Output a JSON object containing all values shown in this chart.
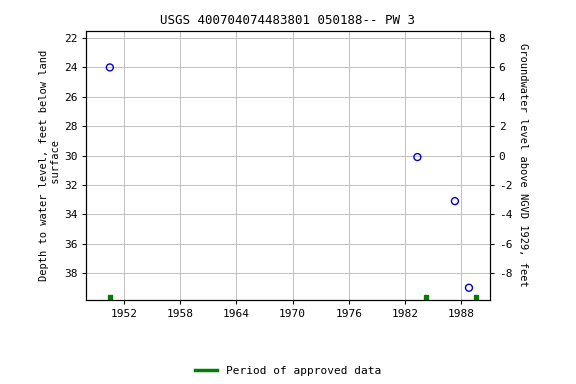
{
  "title": "USGS 400704074483801 050188-- PW 3",
  "ylabel_left": "Depth to water level, feet below land\n surface",
  "ylabel_right": "Groundwater level above NGVD 1929, feet",
  "ylim_left": [
    39.8,
    21.5
  ],
  "yticks_left": [
    22,
    24,
    26,
    28,
    30,
    32,
    34,
    36,
    38
  ],
  "yticks_right_labels": [
    "8",
    "6",
    "4",
    "2",
    "0",
    "-2",
    "-4",
    "-6",
    "-8"
  ],
  "yticks_right_positions": [
    22,
    24,
    26,
    28,
    30,
    32,
    34,
    36,
    38
  ],
  "xlim": [
    1948.0,
    1991.0
  ],
  "xticks": [
    1952,
    1958,
    1964,
    1970,
    1976,
    1982,
    1988
  ],
  "data_points_x": [
    1950.5,
    1983.3,
    1987.3,
    1988.8
  ],
  "data_points_y": [
    24.0,
    30.1,
    33.1,
    39.0
  ],
  "approved_data_x": [
    1950.5,
    1984.2,
    1989.5
  ],
  "approved_data_y": [
    39.6,
    39.6,
    39.6
  ],
  "point_color": "#0000cc",
  "approved_color": "#008000",
  "bg_color": "#ffffff",
  "grid_color": "#c0c0c0",
  "title_fontsize": 9,
  "axis_label_fontsize": 7.5,
  "tick_fontsize": 8,
  "legend_label": "Period of approved data",
  "font_family": "monospace"
}
